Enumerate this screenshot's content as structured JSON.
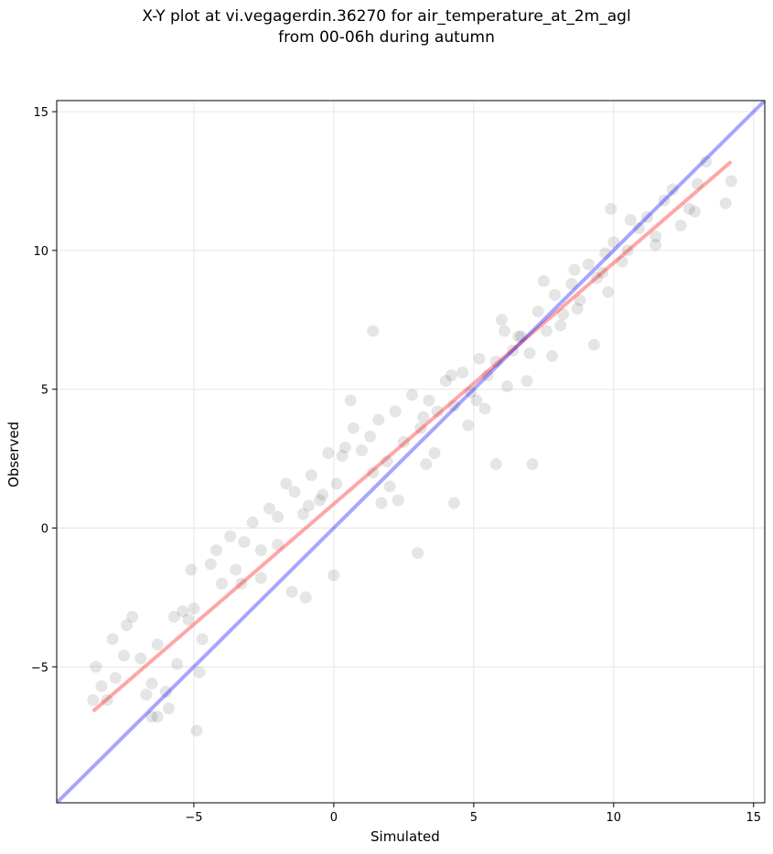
{
  "chart_data": {
    "type": "scatter",
    "title": "X-Y plot at vi.vegagerdin.36270 for air_temperature_at_2m_agl",
    "subtitle": "from 00-06h during autumn",
    "xlabel": "Simulated",
    "ylabel": "Observed",
    "xlim": [
      -9.9,
      15.4
    ],
    "ylim": [
      -9.9,
      15.4
    ],
    "xticks": [
      -5,
      0,
      5,
      10,
      15
    ],
    "yticks": [
      -5,
      0,
      5,
      10,
      15
    ],
    "xtick_labels": [
      "−5",
      "0",
      "5",
      "10",
      "15"
    ],
    "ytick_labels": [
      "−5",
      "0",
      "5",
      "10",
      "15"
    ],
    "grid": true,
    "point_color": "#000000",
    "point_alpha": 0.1,
    "series": [
      {
        "type": "scatter",
        "x": [
          -8.6,
          -8.5,
          -8.3,
          -8.1,
          -7.8,
          -7.9,
          -7.4,
          -7.5,
          -7.2,
          -6.9,
          -6.7,
          -6.5,
          -6.3,
          -6.5,
          -6.0,
          -5.9,
          -5.7,
          -5.6,
          -5.4,
          -5.2,
          -5.0,
          -4.7,
          -4.4,
          -4.2,
          -4.0,
          -3.7,
          -3.5,
          -3.2,
          -2.9,
          -2.6,
          -2.3,
          -2.0,
          -1.7,
          -1.4,
          -1.1,
          -0.8,
          -0.5,
          -0.2,
          0.1,
          0.4,
          0.7,
          1.0,
          1.3,
          1.6,
          1.9,
          2.2,
          2.5,
          2.8,
          3.1,
          3.4,
          3.7,
          4.0,
          4.3,
          4.6,
          4.9,
          5.2,
          5.5,
          5.8,
          6.1,
          6.4,
          6.7,
          7.0,
          7.3,
          7.6,
          7.9,
          8.2,
          8.5,
          8.8,
          9.1,
          9.4,
          9.7,
          10.0,
          10.3,
          10.6,
          10.9,
          11.2,
          11.5,
          11.8,
          12.1,
          12.4,
          12.7,
          13.0,
          13.3,
          14.0,
          14.2,
          -4.9,
          -6.3,
          -4.8,
          -5.1,
          -3.3,
          -2.6,
          -1.0,
          0.0,
          1.4,
          3.0,
          4.3,
          5.8,
          7.1,
          9.3,
          11.5,
          12.9,
          -1.5,
          -0.4,
          0.6,
          2.0,
          3.6,
          4.8,
          6.2,
          7.5,
          8.6,
          9.9,
          1.4,
          2.3,
          3.2,
          4.2,
          5.1,
          6.0,
          6.9,
          7.8,
          8.7,
          9.6,
          -2.0,
          -0.9,
          0.3,
          1.7,
          3.3,
          5.4,
          6.6,
          8.1,
          9.8,
          10.5
        ],
        "y": [
          -6.2,
          -5.0,
          -5.7,
          -6.2,
          -5.4,
          -4.0,
          -3.5,
          -4.6,
          -3.2,
          -4.7,
          -6.0,
          -5.6,
          -4.2,
          -6.8,
          -5.9,
          -6.5,
          -3.2,
          -4.9,
          -3.0,
          -3.3,
          -2.9,
          -4.0,
          -1.3,
          -0.8,
          -2.0,
          -0.3,
          -1.5,
          -0.5,
          0.2,
          -0.8,
          0.7,
          0.4,
          1.6,
          1.3,
          0.5,
          1.9,
          1.0,
          2.7,
          1.6,
          2.9,
          3.6,
          2.8,
          3.3,
          3.9,
          2.4,
          4.2,
          3.1,
          4.8,
          3.6,
          4.6,
          4.2,
          5.3,
          4.4,
          5.6,
          4.9,
          6.1,
          5.5,
          6.0,
          7.1,
          6.4,
          6.9,
          6.3,
          7.8,
          7.1,
          8.4,
          7.7,
          8.8,
          8.2,
          9.5,
          9.0,
          9.9,
          10.3,
          9.6,
          11.1,
          10.8,
          11.2,
          10.5,
          11.8,
          12.2,
          10.9,
          11.5,
          12.4,
          13.2,
          11.7,
          12.5,
          -7.3,
          -6.8,
          -5.2,
          -1.5,
          -2.0,
          -1.8,
          -2.5,
          -1.7,
          7.1,
          -0.9,
          0.9,
          2.3,
          2.3,
          6.6,
          10.2,
          11.4,
          -2.3,
          1.2,
          4.6,
          1.5,
          2.7,
          3.7,
          5.1,
          8.9,
          9.3,
          11.5,
          2.0,
          1.0,
          4.0,
          5.5,
          4.6,
          7.5,
          5.3,
          6.2,
          7.9,
          9.2,
          -0.6,
          0.8,
          2.6,
          0.9,
          2.3,
          4.3,
          6.9,
          7.3,
          8.5,
          10.0
        ]
      }
    ],
    "lines": [
      {
        "color": "#ff0000",
        "alpha": 0.35,
        "x": [
          -8.6,
          14.2
        ],
        "y": [
          -6.6,
          13.2
        ]
      },
      {
        "color": "#0000ff",
        "alpha": 0.35,
        "x": [
          -9.9,
          15.4
        ],
        "y": [
          -9.9,
          15.4
        ]
      }
    ]
  }
}
